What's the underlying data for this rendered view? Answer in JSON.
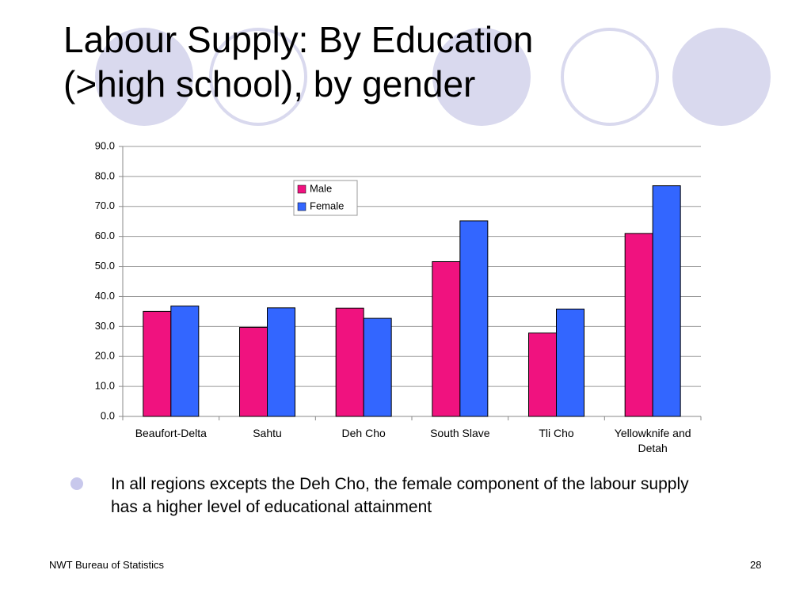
{
  "slide": {
    "title": "Labour Supply: By Education (>high school), by gender",
    "bullet": "In all regions excepts the Deh Cho, the female component of the labour supply has a higher level of educational attainment",
    "footer": "NWT Bureau of Statistics",
    "page_number": "28"
  },
  "chart_data": {
    "type": "bar",
    "categories": [
      "Beaufort-Delta",
      "Sahtu",
      "Deh Cho",
      "South Slave",
      "Tli Cho",
      "Yellowknife and Detah"
    ],
    "series": [
      {
        "name": "Male",
        "color": "#f0127f",
        "values": [
          35.0,
          29.7,
          36.1,
          51.6,
          27.8,
          61.0
        ]
      },
      {
        "name": "Female",
        "color": "#3366ff",
        "values": [
          36.8,
          36.2,
          32.7,
          65.2,
          35.8,
          76.9
        ]
      }
    ],
    "ylim": [
      0,
      90
    ],
    "yticks": [
      {
        "value": 0,
        "label": "0.0"
      },
      {
        "value": 10,
        "label": "10.0"
      },
      {
        "value": 20,
        "label": "20.0"
      },
      {
        "value": 30,
        "label": "30.0"
      },
      {
        "value": 40,
        "label": "40.0"
      },
      {
        "value": 50,
        "label": "50.0"
      },
      {
        "value": 60,
        "label": "60.0"
      },
      {
        "value": 70,
        "label": "70.0"
      },
      {
        "value": 80,
        "label": "80.0"
      },
      {
        "value": 90,
        "label": "90.0"
      }
    ],
    "grid": true,
    "legend": "top-center"
  }
}
